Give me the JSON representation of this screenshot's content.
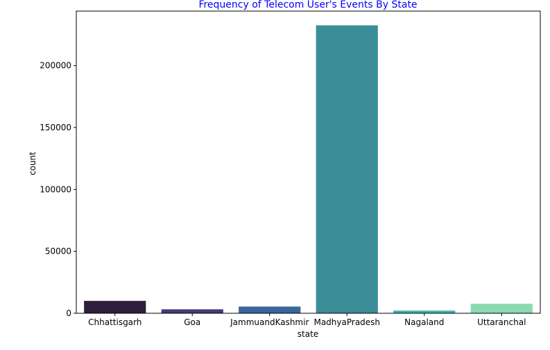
{
  "chart_data": {
    "type": "bar",
    "title": "Frequency of Telecom User's Events By State",
    "xlabel": "state",
    "ylabel": "count",
    "categories": [
      "Chhattisgarh",
      "Goa",
      "JammuandKashmir",
      "MadhyaPradesh",
      "Nagaland",
      "Uttaranchal"
    ],
    "values": [
      10000,
      3200,
      5400,
      232500,
      2200,
      7700
    ],
    "colors": [
      "#2e1e3b",
      "#413d7b",
      "#37659e",
      "#3b8e98",
      "#40b7ad",
      "#8bdab2"
    ],
    "ylim": [
      0,
      244000
    ],
    "yticks": [
      0,
      50000,
      100000,
      150000,
      200000
    ],
    "ytick_labels": [
      "0",
      "50000",
      "100000",
      "150000",
      "200000"
    ],
    "title_color": "#0000ff",
    "grid": false,
    "legend": "none"
  }
}
